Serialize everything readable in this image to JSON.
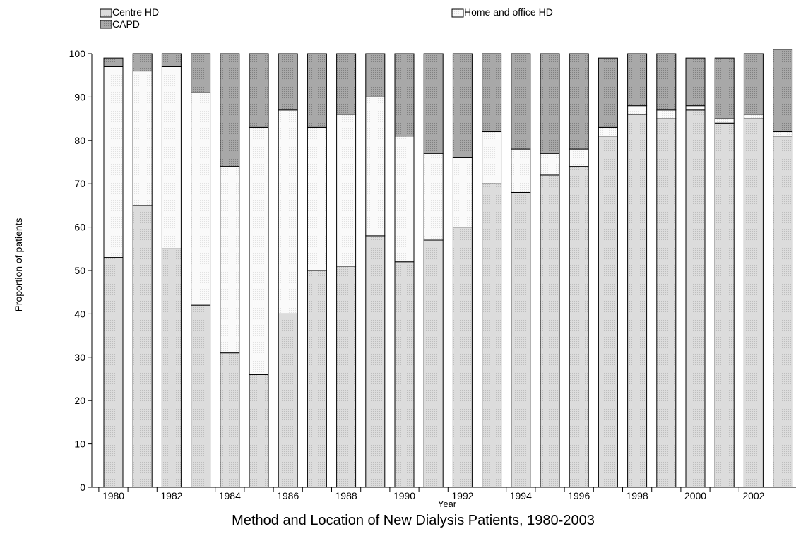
{
  "chart_data": {
    "type": "bar",
    "stacked": true,
    "title": "Method and Location of New Dialysis Patients, 1980-2003",
    "xlabel": "Year",
    "ylabel": "Proportion of patients",
    "ylim": [
      0,
      100
    ],
    "yticks": [
      0,
      10,
      20,
      30,
      40,
      50,
      60,
      70,
      80,
      90,
      100
    ],
    "grid": false,
    "legend_position": "top",
    "categories": [
      "1980",
      "1981",
      "1982",
      "1983",
      "1984",
      "1985",
      "1986",
      "1987",
      "1988",
      "1989",
      "1990",
      "1991",
      "1992",
      "1993",
      "1994",
      "1995",
      "1996",
      "1997",
      "1998",
      "1999",
      "2000",
      "2001",
      "2002",
      "2003"
    ],
    "xtick_labels": [
      "1980",
      "",
      "1982",
      "",
      "1984",
      "",
      "1986",
      "",
      "1988",
      "",
      "1990",
      "",
      "1992",
      "",
      "1994",
      "",
      "1996",
      "",
      "1998",
      "",
      "2000",
      "",
      "2002",
      ""
    ],
    "series": [
      {
        "name": "Centre HD",
        "color": "#d9d9d9",
        "values": [
          53,
          65,
          55,
          42,
          31,
          26,
          40,
          50,
          51,
          58,
          52,
          57,
          60,
          70,
          68,
          72,
          74,
          81,
          86,
          85,
          87,
          84,
          85,
          81
        ]
      },
      {
        "name": "Home and office HD",
        "color": "#f7f7f7",
        "values": [
          44,
          31,
          42,
          49,
          43,
          57,
          47,
          33,
          35,
          32,
          29,
          20,
          16,
          12,
          10,
          5,
          4,
          2,
          2,
          2,
          1,
          1,
          1,
          1
        ]
      },
      {
        "name": "CAPD",
        "color": "#a6a6a6",
        "values": [
          2,
          4,
          3,
          9,
          26,
          17,
          13,
          17,
          14,
          10,
          19,
          23,
          24,
          18,
          22,
          23,
          22,
          16,
          12,
          13,
          11,
          14,
          14,
          19
        ]
      }
    ]
  }
}
